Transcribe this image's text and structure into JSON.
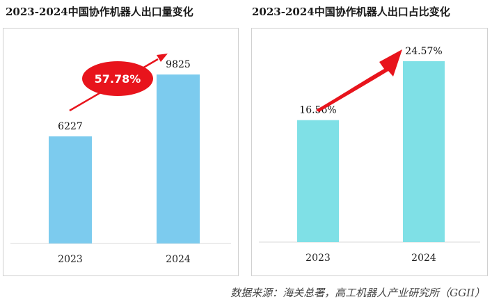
{
  "source": "数据来源：海关总署，高工机器人产业研究所（GGII）",
  "chart_data": [
    {
      "type": "bar",
      "title": "2023-2024中国协作机器人出口量变化",
      "categories": [
        "2023",
        "2024"
      ],
      "values": [
        6227,
        9825
      ],
      "value_labels": [
        "6227",
        "9825"
      ],
      "ylim": [
        0,
        12500
      ],
      "bar_color": "#7ccbee",
      "annotation": {
        "text": "57.78%",
        "shape": "red-ellipse-with-arrow",
        "color": "#e8141c"
      }
    },
    {
      "type": "bar",
      "title": "2023-2024中国协作机器人出口占比变化",
      "categories": [
        "2023",
        "2024"
      ],
      "values": [
        16.56,
        24.57
      ],
      "value_labels": [
        "16.56%",
        "24.57%"
      ],
      "ylim": [
        0,
        29
      ],
      "bar_color": "#7fe0e6",
      "annotation": {
        "shape": "red-curved-arrow",
        "color": "#e8141c"
      }
    }
  ]
}
